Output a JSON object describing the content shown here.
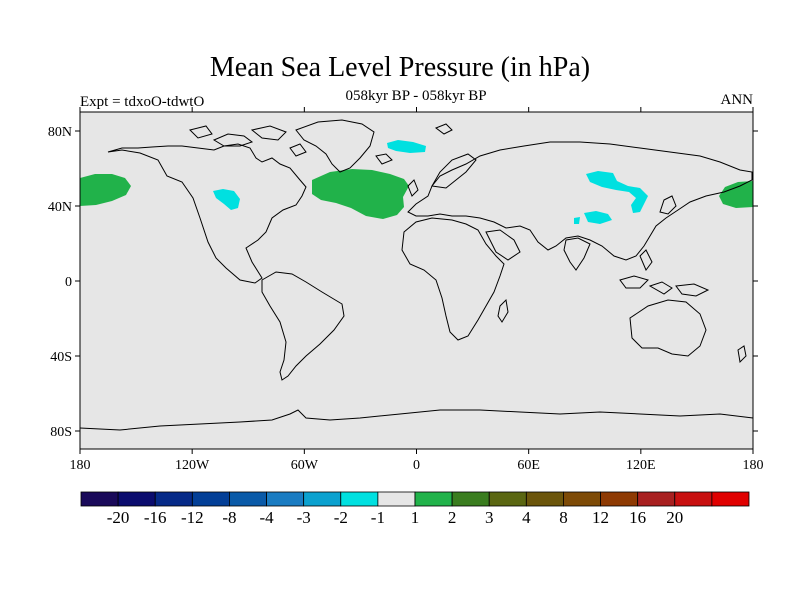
{
  "title": "Mean Sea Level Pressure (in hPa)",
  "left_string": "Expt = tdxoO-tdwtO",
  "center_string": "058kyr BP - 058kyr BP",
  "right_string": "ANN",
  "map": {
    "projection": "cylindrical-equidistant",
    "lon_range": [
      -180,
      180
    ],
    "lat_range": [
      -90,
      90
    ],
    "background_color": "#e6e6e6",
    "coastline_color": "#000000",
    "x_ticks": [
      "180",
      "120W",
      "60W",
      "0",
      "60E",
      "120E",
      "180"
    ],
    "y_ticks": [
      "80N",
      "40N",
      "0",
      "40S",
      "80S"
    ],
    "anomaly_regions": [
      {
        "name": "North Pacific East",
        "class": "1 to 2",
        "color": "#21b24a"
      },
      {
        "name": "North Pacific West",
        "class": "1 to 2",
        "color": "#21b24a"
      },
      {
        "name": "North Atlantic",
        "class": "1 to 2",
        "color": "#21b24a"
      },
      {
        "name": "North America",
        "class": "-2 to -1",
        "color": "#00e0e0"
      },
      {
        "name": "Greenland",
        "class": "-2 to -1",
        "color": "#00e0e0"
      },
      {
        "name": "Siberia",
        "class": "-2 to -1",
        "color": "#00e0e0"
      },
      {
        "name": "Central Asia",
        "class": "-2 to -1",
        "color": "#00e0e0"
      }
    ]
  },
  "colorbar": {
    "colors": [
      "#1a0a5a",
      "#0b0c6e",
      "#062a88",
      "#033f97",
      "#0a5aa8",
      "#1a7cc2",
      "#0ba1cf",
      "#00e0e0",
      "#e6e6e6",
      "#21b24a",
      "#3a7d1f",
      "#5a6611",
      "#6b550b",
      "#7d4a06",
      "#8e3a03",
      "#a82020",
      "#c81010",
      "#e00000"
    ],
    "labels": [
      "-20",
      "-16",
      "-12",
      "-8",
      "-4",
      "-3",
      "-2",
      "-1",
      "1",
      "2",
      "3",
      "4",
      "8",
      "12",
      "16",
      "20"
    ]
  }
}
